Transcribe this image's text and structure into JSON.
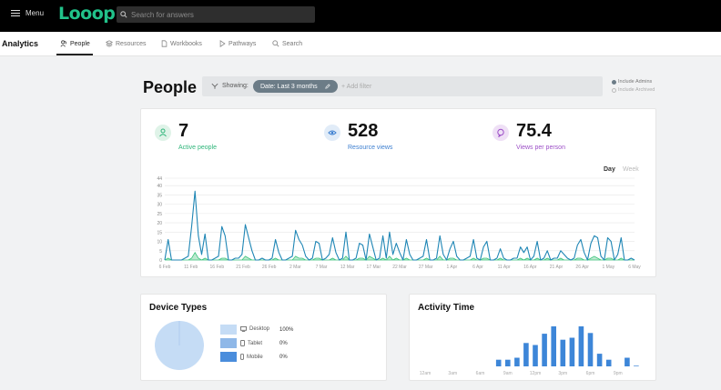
{
  "topbar": {
    "menu_label": "Menu",
    "logo": "Looop",
    "search_placeholder": "Search for answers"
  },
  "subnav": {
    "title": "Analytics",
    "tabs": [
      {
        "label": "People",
        "icon": "people-icon",
        "active": true
      },
      {
        "label": "Resources",
        "icon": "stack-icon"
      },
      {
        "label": "Workbooks",
        "icon": "document-icon"
      },
      {
        "label": "Pathways",
        "icon": "play-icon"
      },
      {
        "label": "Search",
        "icon": "search-icon"
      }
    ]
  },
  "header": {
    "title": "People",
    "showing_label": "Showing:",
    "filter_chip": "Date: Last 3 months",
    "add_filter": "+ Add filter",
    "include_admins": "Include Admins",
    "include_archived": "Include Archived"
  },
  "stats": [
    {
      "value": "7",
      "label": "Active people",
      "color": "#2fb57a",
      "icon": "person-icon"
    },
    {
      "value": "528",
      "label": "Resource views",
      "color": "#3d7fd0",
      "icon": "eye-icon"
    },
    {
      "value": "75.4",
      "label": "Views per person",
      "color": "#9c4fc7",
      "icon": "chat-bubble-icon"
    }
  ],
  "toggles": {
    "day": "Day",
    "week": "Week"
  },
  "chart_data": [
    {
      "type": "line",
      "title": "",
      "y_ticks": [
        0,
        5,
        10,
        15,
        20,
        25,
        30,
        35,
        40,
        44
      ],
      "ylim": [
        0,
        44
      ],
      "grid": true,
      "x_tick_labels": [
        "6 Feb",
        "11 Feb",
        "16 Feb",
        "21 Feb",
        "26 Feb",
        "2 Mar",
        "7 Mar",
        "12 Mar",
        "17 Mar",
        "22 Mar",
        "27 Mar",
        "1 Apr",
        "6 Apr",
        "11 Apr",
        "16 Apr",
        "21 Apr",
        "26 Apr",
        "1 May",
        "6 May"
      ],
      "series": [
        {
          "color": "#1f86b5",
          "values": [
            0,
            11,
            0,
            0,
            0,
            0,
            1,
            2,
            18,
            37,
            13,
            3,
            14,
            0,
            0,
            1,
            2,
            18,
            13,
            0,
            0,
            1,
            1,
            3,
            19,
            12,
            5,
            0,
            0,
            1,
            0,
            0,
            1,
            11,
            4,
            0,
            0,
            1,
            2,
            16,
            11,
            8,
            2,
            0,
            1,
            10,
            9,
            0,
            1,
            3,
            12,
            4,
            0,
            1,
            15,
            0,
            0,
            1,
            9,
            8,
            0,
            14,
            7,
            0,
            1,
            13,
            1,
            15,
            3,
            9,
            4,
            0,
            11,
            3,
            0,
            0,
            1,
            2,
            11,
            0,
            0,
            1,
            13,
            3,
            0,
            6,
            10,
            2,
            0,
            0,
            1,
            2,
            11,
            1,
            0,
            7,
            10,
            0,
            0,
            1,
            6,
            1,
            0,
            0,
            1,
            1,
            7,
            4,
            7,
            0,
            2,
            10,
            0,
            1,
            5,
            0,
            1,
            1,
            5,
            3,
            1,
            0,
            1,
            8,
            11,
            4,
            0,
            9,
            13,
            12,
            2,
            0,
            12,
            10,
            0,
            3,
            12,
            0,
            0,
            1,
            0
          ]
        },
        {
          "color": "#3cc47c",
          "values": [
            0,
            1,
            0,
            0,
            0,
            0,
            0,
            0,
            1,
            4,
            1,
            0,
            1,
            0,
            0,
            0,
            0,
            1,
            1,
            0,
            0,
            0,
            0,
            0,
            2,
            1,
            0,
            0,
            0,
            0,
            0,
            0,
            0,
            1,
            0,
            0,
            0,
            0,
            0,
            2,
            1,
            1,
            0,
            0,
            0,
            1,
            1,
            0,
            0,
            0,
            1,
            0,
            0,
            0,
            2,
            0,
            0,
            0,
            1,
            1,
            0,
            2,
            1,
            0,
            0,
            1,
            0,
            2,
            0,
            1,
            0,
            0,
            1,
            0,
            0,
            0,
            0,
            0,
            1,
            0,
            0,
            0,
            2,
            0,
            0,
            1,
            1,
            0,
            0,
            0,
            0,
            0,
            1,
            0,
            0,
            1,
            1,
            0,
            0,
            0,
            1,
            0,
            0,
            0,
            0,
            0,
            1,
            0,
            1,
            0,
            0,
            1,
            0,
            0,
            1,
            0,
            0,
            0,
            1,
            0,
            0,
            0,
            0,
            1,
            1,
            0,
            0,
            1,
            2,
            1,
            0,
            0,
            1,
            1,
            0,
            0,
            1,
            0,
            0,
            0,
            0
          ]
        }
      ]
    },
    {
      "type": "pie",
      "title": "Device Types",
      "slices": [
        {
          "name": "Desktop",
          "value": 100,
          "label": "100%",
          "color": "#c5dcf5",
          "icon": "monitor-icon"
        },
        {
          "name": "Tablet",
          "value": 0,
          "label": "0%",
          "color": "#8fb8e8",
          "icon": "tablet-icon"
        },
        {
          "name": "Mobile",
          "value": 0,
          "label": "0%",
          "color": "#4a8ddc",
          "icon": "phone-icon"
        }
      ]
    },
    {
      "type": "bar",
      "title": "Activity Time",
      "x_tick_labels": [
        "12am",
        "3am",
        "6am",
        "9am",
        "12pm",
        "3pm",
        "6pm",
        "9pm"
      ],
      "values": [
        0,
        0,
        0,
        0,
        0,
        0,
        0,
        0,
        1,
        1,
        1.3,
        3.5,
        3.2,
        4.9,
        6,
        4,
        4.3,
        6,
        5,
        1.9,
        1,
        0,
        1.3,
        0.1
      ],
      "color": "#3d86d8"
    }
  ]
}
